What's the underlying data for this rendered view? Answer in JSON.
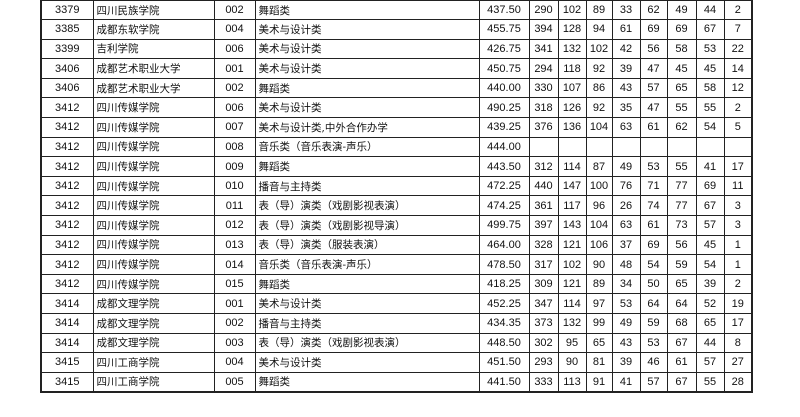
{
  "rows": [
    [
      "3379",
      "四川民族学院",
      "002",
      "舞蹈类",
      "437.50",
      "290",
      "102",
      "89",
      "33",
      "62",
      "49",
      "44",
      "2"
    ],
    [
      "3385",
      "成都东软学院",
      "004",
      "美术与设计类",
      "455.75",
      "394",
      "128",
      "94",
      "61",
      "69",
      "69",
      "67",
      "7"
    ],
    [
      "3399",
      "吉利学院",
      "006",
      "美术与设计类",
      "426.75",
      "341",
      "132",
      "102",
      "42",
      "56",
      "58",
      "53",
      "22"
    ],
    [
      "3406",
      "成都艺术职业大学",
      "001",
      "美术与设计类",
      "450.75",
      "294",
      "118",
      "92",
      "39",
      "47",
      "45",
      "45",
      "14"
    ],
    [
      "3406",
      "成都艺术职业大学",
      "002",
      "舞蹈类",
      "440.00",
      "330",
      "107",
      "86",
      "43",
      "57",
      "65",
      "58",
      "12"
    ],
    [
      "3412",
      "四川传媒学院",
      "006",
      "美术与设计类",
      "490.25",
      "318",
      "126",
      "92",
      "35",
      "47",
      "55",
      "55",
      "2"
    ],
    [
      "3412",
      "四川传媒学院",
      "007",
      "美术与设计类,中外合作办学",
      "439.25",
      "376",
      "136",
      "104",
      "63",
      "61",
      "62",
      "54",
      "5"
    ],
    [
      "3412",
      "四川传媒学院",
      "008",
      "音乐类（音乐表演-声乐）",
      "444.00",
      "",
      "",
      "",
      "",
      "",
      "",
      "",
      ""
    ],
    [
      "3412",
      "四川传媒学院",
      "009",
      "舞蹈类",
      "443.50",
      "312",
      "114",
      "87",
      "49",
      "53",
      "55",
      "41",
      "17"
    ],
    [
      "3412",
      "四川传媒学院",
      "010",
      "播音与主持类",
      "472.25",
      "440",
      "147",
      "100",
      "76",
      "71",
      "77",
      "69",
      "11"
    ],
    [
      "3412",
      "四川传媒学院",
      "011",
      "表（导）演类（戏剧影视表演）",
      "474.25",
      "361",
      "117",
      "96",
      "26",
      "74",
      "77",
      "67",
      "3"
    ],
    [
      "3412",
      "四川传媒学院",
      "012",
      "表（导）演类（戏剧影视导演）",
      "499.75",
      "397",
      "143",
      "104",
      "63",
      "61",
      "73",
      "57",
      "3"
    ],
    [
      "3412",
      "四川传媒学院",
      "013",
      "表（导）演类（服装表演）",
      "464.00",
      "328",
      "121",
      "106",
      "37",
      "69",
      "56",
      "45",
      "1"
    ],
    [
      "3412",
      "四川传媒学院",
      "014",
      "音乐类（音乐表演-声乐）",
      "478.50",
      "317",
      "102",
      "90",
      "48",
      "54",
      "59",
      "54",
      "1"
    ],
    [
      "3412",
      "四川传媒学院",
      "015",
      "舞蹈类",
      "418.25",
      "309",
      "121",
      "89",
      "34",
      "50",
      "65",
      "39",
      "2"
    ],
    [
      "3414",
      "成都文理学院",
      "001",
      "美术与设计类",
      "452.25",
      "347",
      "114",
      "97",
      "53",
      "64",
      "64",
      "52",
      "19"
    ],
    [
      "3414",
      "成都文理学院",
      "002",
      "播音与主持类",
      "434.35",
      "373",
      "132",
      "99",
      "49",
      "59",
      "68",
      "65",
      "17"
    ],
    [
      "3414",
      "成都文理学院",
      "003",
      "表（导）演类（戏剧影视表演）",
      "448.50",
      "302",
      "95",
      "65",
      "43",
      "53",
      "67",
      "44",
      "8"
    ],
    [
      "3415",
      "四川工商学院",
      "004",
      "美术与设计类",
      "451.50",
      "293",
      "90",
      "81",
      "39",
      "46",
      "61",
      "57",
      "27"
    ],
    [
      "3415",
      "四川工商学院",
      "005",
      "舞蹈类",
      "441.50",
      "333",
      "113",
      "91",
      "41",
      "57",
      "67",
      "55",
      "28"
    ]
  ]
}
